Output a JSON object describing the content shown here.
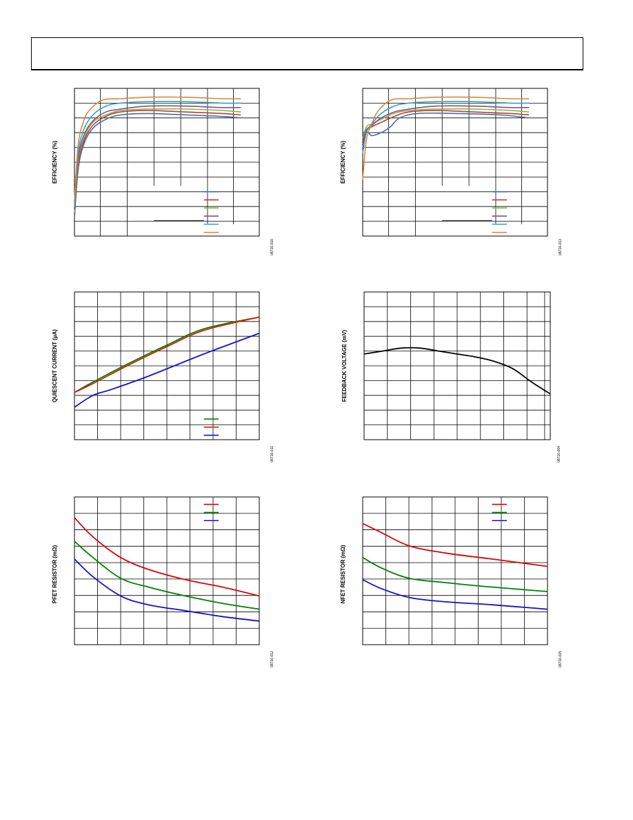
{
  "page": {
    "colors": {
      "frame": "#000000",
      "grid": "#000000"
    }
  },
  "chart_data": [
    {
      "id": "c1",
      "type": "line",
      "ylabel": "EFFICIENCY (%)",
      "code": "08716-010",
      "grid": true,
      "legend": "bottom-right, labels not legible",
      "xlim": [
        0,
        1
      ],
      "ylim": [
        0,
        1
      ],
      "series": [
        {
          "color": "#3a6fb0",
          "points": [
            [
              0,
              0.12
            ],
            [
              0.02,
              0.45
            ],
            [
              0.05,
              0.62
            ],
            [
              0.1,
              0.73
            ],
            [
              0.17,
              0.79
            ],
            [
              0.25,
              0.82
            ],
            [
              0.4,
              0.83
            ],
            [
              0.6,
              0.82
            ],
            [
              0.8,
              0.81
            ],
            [
              0.9,
              0.8
            ]
          ]
        },
        {
          "color": "#c0392b",
          "points": [
            [
              0,
              0.14
            ],
            [
              0.02,
              0.47
            ],
            [
              0.05,
              0.64
            ],
            [
              0.1,
              0.75
            ],
            [
              0.17,
              0.81
            ],
            [
              0.25,
              0.84
            ],
            [
              0.4,
              0.85
            ],
            [
              0.6,
              0.84
            ],
            [
              0.8,
              0.83
            ],
            [
              0.9,
              0.82
            ]
          ]
        },
        {
          "color": "#8db33a",
          "points": [
            [
              0,
              0.16
            ],
            [
              0.02,
              0.5
            ],
            [
              0.05,
              0.66
            ],
            [
              0.1,
              0.77
            ],
            [
              0.17,
              0.82
            ],
            [
              0.25,
              0.85
            ],
            [
              0.4,
              0.86
            ],
            [
              0.6,
              0.86
            ],
            [
              0.8,
              0.85
            ],
            [
              0.9,
              0.84
            ]
          ]
        },
        {
          "color": "#7a4ea0",
          "points": [
            [
              0,
              0.18
            ],
            [
              0.02,
              0.52
            ],
            [
              0.05,
              0.68
            ],
            [
              0.1,
              0.78
            ],
            [
              0.17,
              0.84
            ],
            [
              0.25,
              0.86
            ],
            [
              0.4,
              0.88
            ],
            [
              0.6,
              0.88
            ],
            [
              0.8,
              0.87
            ],
            [
              0.9,
              0.87
            ]
          ]
        },
        {
          "color": "#2aa6c8",
          "points": [
            [
              0,
              0.2
            ],
            [
              0.02,
              0.56
            ],
            [
              0.05,
              0.72
            ],
            [
              0.1,
              0.82
            ],
            [
              0.17,
              0.88
            ],
            [
              0.25,
              0.9
            ],
            [
              0.4,
              0.91
            ],
            [
              0.6,
              0.91
            ],
            [
              0.8,
              0.9
            ],
            [
              0.9,
              0.9
            ]
          ]
        },
        {
          "color": "#e0853a",
          "points": [
            [
              0,
              0.24
            ],
            [
              0.02,
              0.62
            ],
            [
              0.05,
              0.78
            ],
            [
              0.08,
              0.85
            ],
            [
              0.15,
              0.92
            ],
            [
              0.25,
              0.93
            ],
            [
              0.4,
              0.94
            ],
            [
              0.6,
              0.94
            ],
            [
              0.8,
              0.93
            ],
            [
              0.9,
              0.93
            ]
          ]
        }
      ]
    },
    {
      "id": "c2",
      "type": "line",
      "ylabel": "EFFICIENCY (%)",
      "code": "08716-013",
      "grid": true,
      "legend": "bottom-right, labels not legible",
      "xlim": [
        0,
        1
      ],
      "ylim": [
        0,
        1
      ],
      "series": [
        {
          "color": "#3a6fb0",
          "points": [
            [
              0,
              0.6
            ],
            [
              0.02,
              0.7
            ],
            [
              0.05,
              0.68
            ],
            [
              0.1,
              0.7
            ],
            [
              0.15,
              0.74
            ],
            [
              0.2,
              0.8
            ],
            [
              0.3,
              0.83
            ],
            [
              0.5,
              0.83
            ],
            [
              0.75,
              0.82
            ],
            [
              0.9,
              0.8
            ]
          ]
        },
        {
          "color": "#c0392b",
          "points": [
            [
              0,
              0.62
            ],
            [
              0.02,
              0.71
            ],
            [
              0.05,
              0.74
            ],
            [
              0.1,
              0.77
            ],
            [
              0.17,
              0.81
            ],
            [
              0.25,
              0.84
            ],
            [
              0.4,
              0.85
            ],
            [
              0.6,
              0.84
            ],
            [
              0.8,
              0.83
            ],
            [
              0.9,
              0.82
            ]
          ]
        },
        {
          "color": "#8db33a",
          "points": [
            [
              0,
              0.66
            ],
            [
              0.02,
              0.74
            ],
            [
              0.05,
              0.76
            ],
            [
              0.1,
              0.79
            ],
            [
              0.17,
              0.83
            ],
            [
              0.25,
              0.85
            ],
            [
              0.4,
              0.86
            ],
            [
              0.6,
              0.86
            ],
            [
              0.8,
              0.85
            ],
            [
              0.9,
              0.84
            ]
          ]
        },
        {
          "color": "#7a4ea0",
          "points": [
            [
              0,
              0.64
            ],
            [
              0.02,
              0.72
            ],
            [
              0.05,
              0.75
            ],
            [
              0.1,
              0.8
            ],
            [
              0.17,
              0.84
            ],
            [
              0.25,
              0.86
            ],
            [
              0.4,
              0.88
            ],
            [
              0.6,
              0.88
            ],
            [
              0.8,
              0.87
            ],
            [
              0.9,
              0.87
            ]
          ]
        },
        {
          "color": "#2aa6c8",
          "points": [
            [
              0,
              0.56
            ],
            [
              0.02,
              0.7
            ],
            [
              0.05,
              0.76
            ],
            [
              0.1,
              0.83
            ],
            [
              0.17,
              0.88
            ],
            [
              0.25,
              0.9
            ],
            [
              0.4,
              0.91
            ],
            [
              0.6,
              0.91
            ],
            [
              0.8,
              0.9
            ],
            [
              0.9,
              0.9
            ]
          ]
        },
        {
          "color": "#e0853a",
          "points": [
            [
              0,
              0.38
            ],
            [
              0.02,
              0.65
            ],
            [
              0.05,
              0.76
            ],
            [
              0.08,
              0.84
            ],
            [
              0.15,
              0.92
            ],
            [
              0.25,
              0.93
            ],
            [
              0.4,
              0.94
            ],
            [
              0.6,
              0.94
            ],
            [
              0.8,
              0.93
            ],
            [
              0.9,
              0.93
            ]
          ]
        }
      ]
    },
    {
      "id": "c3",
      "type": "line",
      "ylabel": "QUIESCENT CURRENT (µA)",
      "code": "08716-011",
      "grid": true,
      "legend": "bottom-right, labels not legible",
      "xlim": [
        0,
        1
      ],
      "ylim": [
        0,
        1
      ],
      "series": [
        {
          "color": "#008000",
          "points": [
            [
              0,
              0.32
            ],
            [
              0.1,
              0.39
            ],
            [
              0.3,
              0.52
            ],
            [
              0.5,
              0.64
            ],
            [
              0.7,
              0.75
            ],
            [
              1,
              0.83
            ]
          ]
        },
        {
          "color": "#d62000",
          "points": [
            [
              0,
              0.32
            ],
            [
              0.1,
              0.38
            ],
            [
              0.3,
              0.51
            ],
            [
              0.5,
              0.63
            ],
            [
              0.7,
              0.74
            ],
            [
              1,
              0.83
            ]
          ]
        },
        {
          "color": "#1010d0",
          "points": [
            [
              0,
              0.22
            ],
            [
              0.1,
              0.3
            ],
            [
              0.2,
              0.34
            ],
            [
              0.4,
              0.43
            ],
            [
              0.7,
              0.58
            ],
            [
              1,
              0.72
            ]
          ]
        }
      ]
    },
    {
      "id": "c4",
      "type": "line",
      "ylabel": "FEEDBACK VOLTAGE (mV)",
      "code": "08716-004",
      "grid": true,
      "xlim": [
        0,
        1
      ],
      "ylim": [
        0,
        1
      ],
      "series": [
        {
          "color": "#000000",
          "points": [
            [
              0,
              0.58
            ],
            [
              0.1,
              0.6
            ],
            [
              0.2,
              0.62
            ],
            [
              0.3,
              0.62
            ],
            [
              0.4,
              0.6
            ],
            [
              0.5,
              0.58
            ],
            [
              0.6,
              0.56
            ],
            [
              0.7,
              0.53
            ],
            [
              0.8,
              0.48
            ],
            [
              0.9,
              0.39
            ],
            [
              1,
              0.31
            ]
          ]
        }
      ]
    },
    {
      "id": "c5",
      "type": "line",
      "ylabel": "PFET RESISTOR (mΩ)",
      "code": "08716-012",
      "grid": true,
      "legend": "top-right, labels not legible",
      "xlim": [
        0,
        1
      ],
      "ylim": [
        0,
        1
      ],
      "series": [
        {
          "color": "#e00000",
          "points": [
            [
              0,
              0.86
            ],
            [
              0.1,
              0.73
            ],
            [
              0.25,
              0.59
            ],
            [
              0.4,
              0.51
            ],
            [
              0.6,
              0.44
            ],
            [
              0.8,
              0.39
            ],
            [
              1,
              0.33
            ]
          ]
        },
        {
          "color": "#008000",
          "points": [
            [
              0,
              0.7
            ],
            [
              0.1,
              0.59
            ],
            [
              0.25,
              0.45
            ],
            [
              0.4,
              0.39
            ],
            [
              0.6,
              0.33
            ],
            [
              0.8,
              0.28
            ],
            [
              1,
              0.24
            ]
          ]
        },
        {
          "color": "#1010d0",
          "points": [
            [
              0,
              0.58
            ],
            [
              0.1,
              0.46
            ],
            [
              0.25,
              0.33
            ],
            [
              0.4,
              0.27
            ],
            [
              0.6,
              0.23
            ],
            [
              0.8,
              0.19
            ],
            [
              1,
              0.16
            ]
          ]
        }
      ]
    },
    {
      "id": "c6",
      "type": "line",
      "ylabel": "NFET RESISTOR (mΩ)",
      "code": "08716-015",
      "grid": true,
      "legend": "top-right, labels not legible",
      "xlim": [
        0,
        1
      ],
      "ylim": [
        0,
        1
      ],
      "series": [
        {
          "color": "#e00000",
          "points": [
            [
              0,
              0.82
            ],
            [
              0.1,
              0.76
            ],
            [
              0.25,
              0.67
            ],
            [
              0.45,
              0.62
            ],
            [
              0.7,
              0.58
            ],
            [
              1,
              0.53
            ]
          ]
        },
        {
          "color": "#008000",
          "points": [
            [
              0,
              0.59
            ],
            [
              0.1,
              0.52
            ],
            [
              0.25,
              0.45
            ],
            [
              0.45,
              0.42
            ],
            [
              0.7,
              0.39
            ],
            [
              1,
              0.36
            ]
          ]
        },
        {
          "color": "#1010d0",
          "points": [
            [
              0,
              0.44
            ],
            [
              0.1,
              0.38
            ],
            [
              0.25,
              0.32
            ],
            [
              0.45,
              0.29
            ],
            [
              0.7,
              0.27
            ],
            [
              1,
              0.24
            ]
          ]
        }
      ]
    }
  ]
}
